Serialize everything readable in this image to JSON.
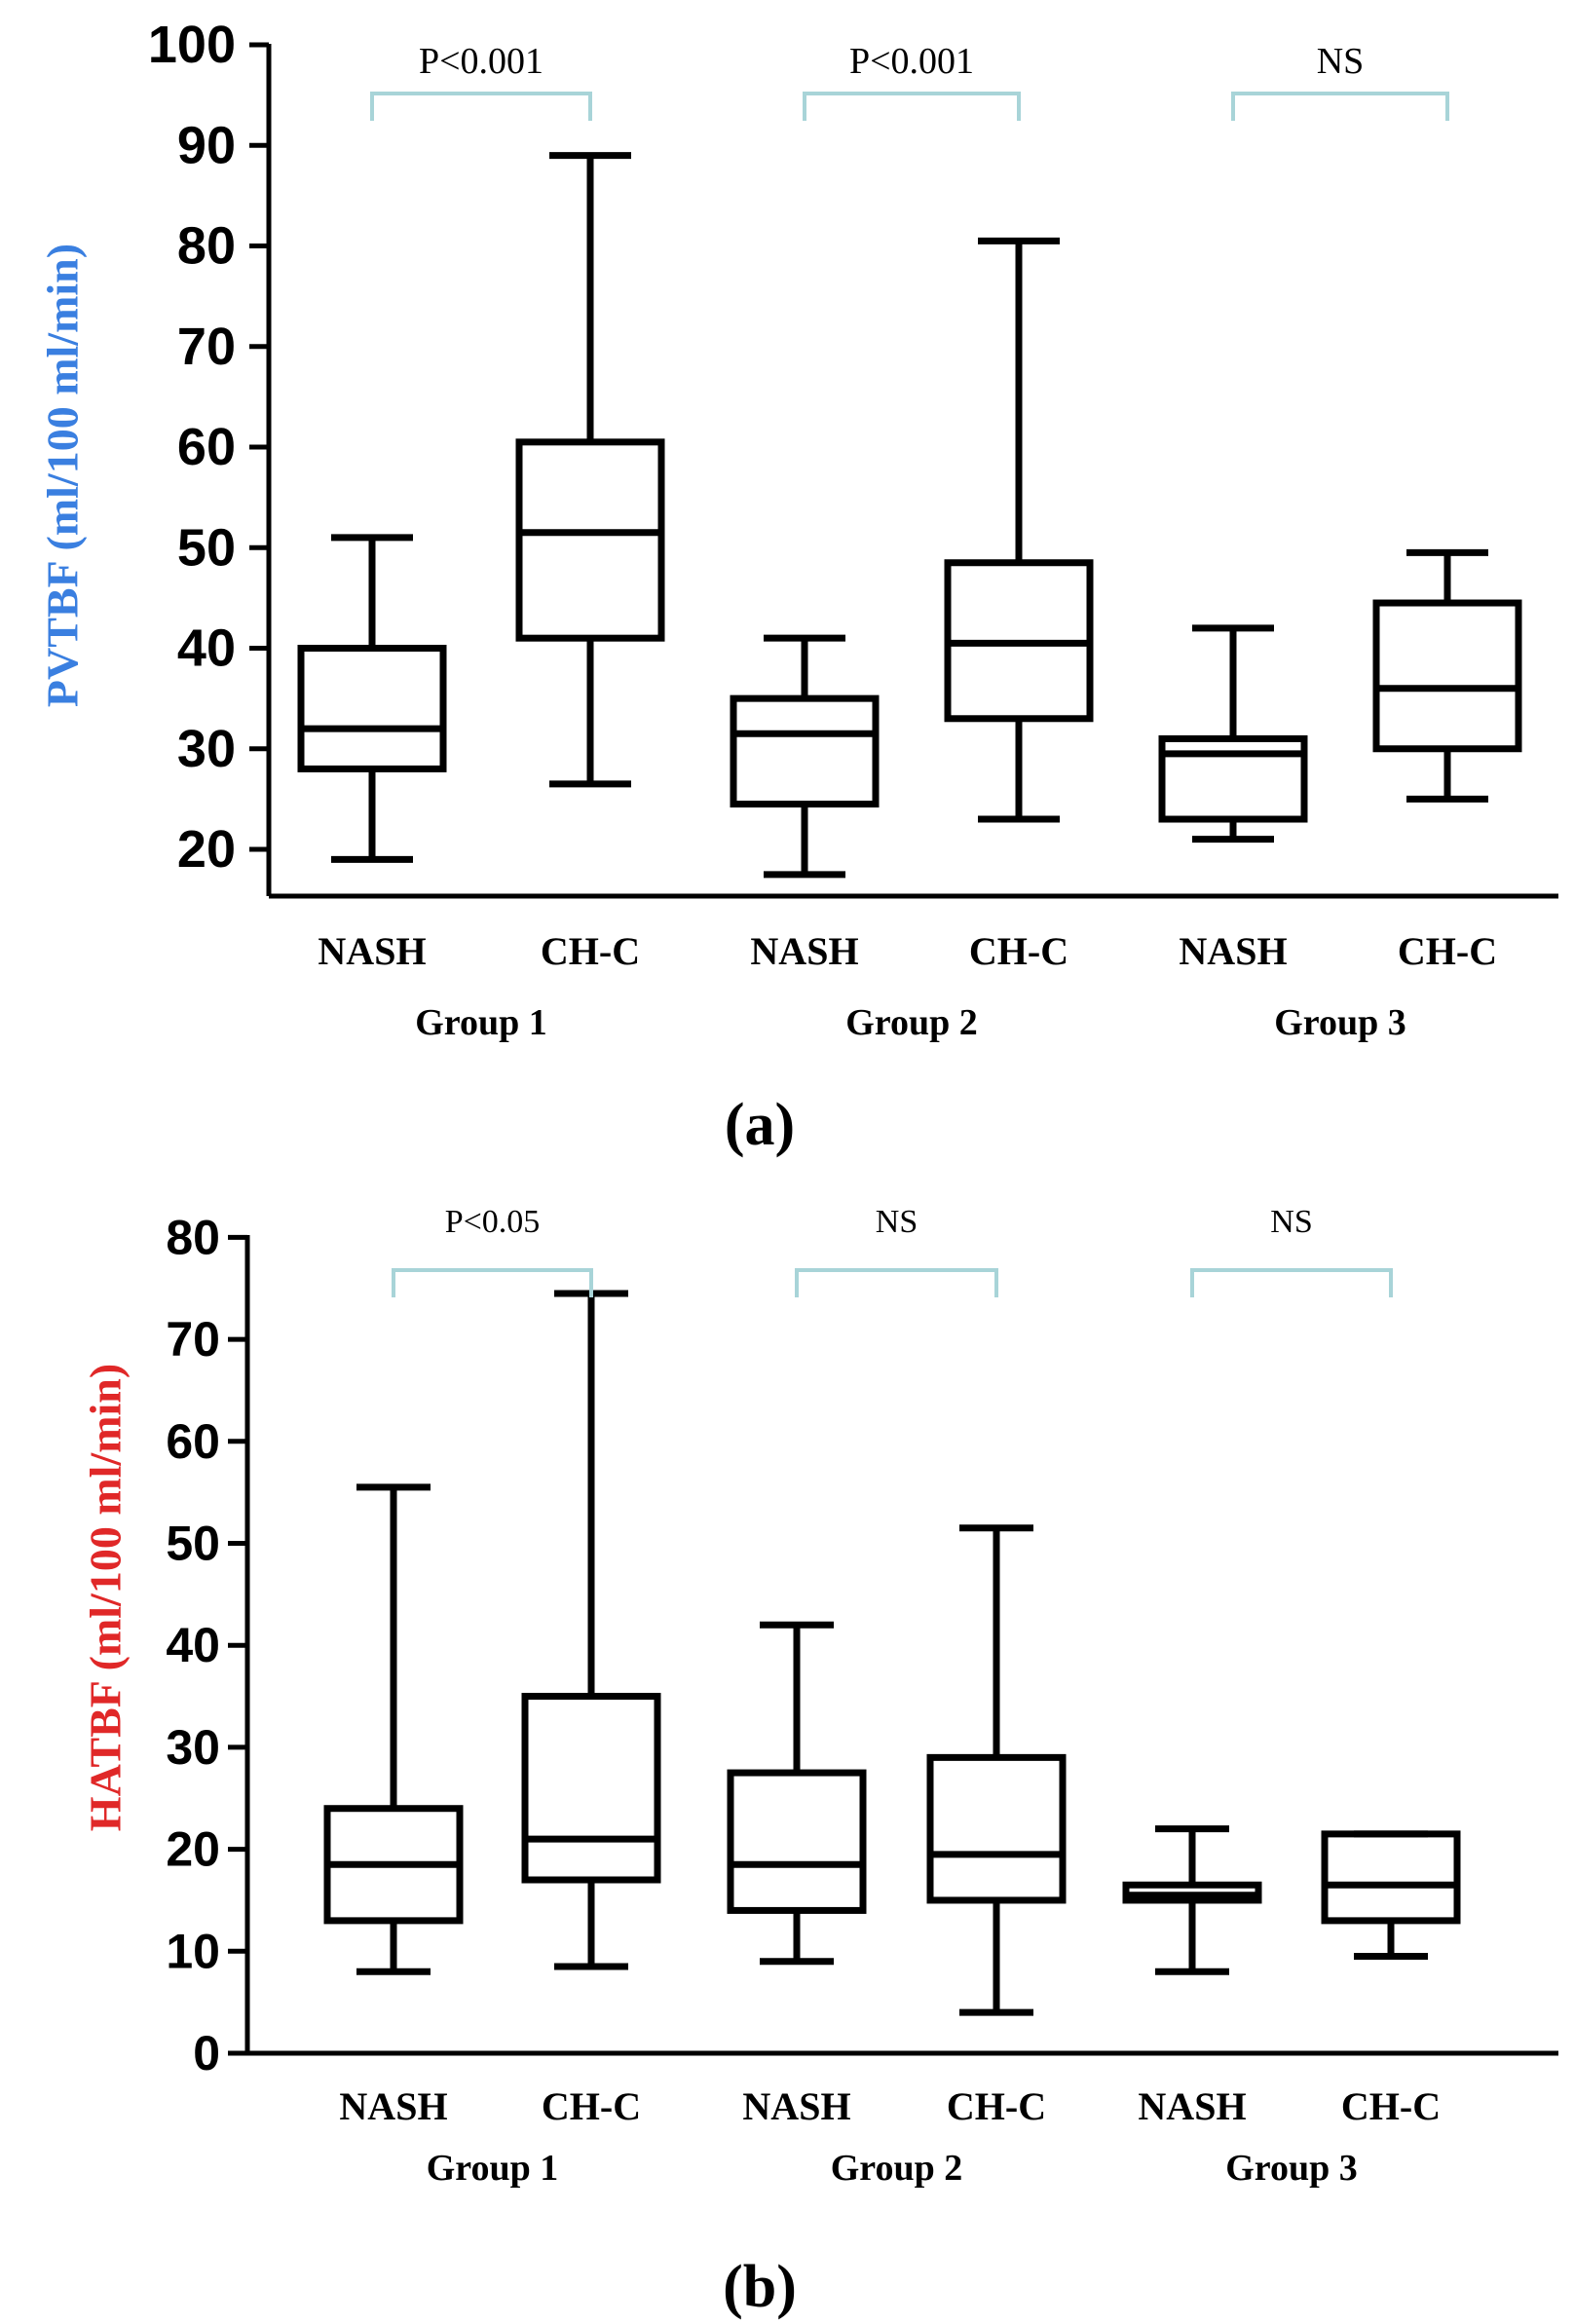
{
  "colors": {
    "axis": "#000000",
    "box": "#000000",
    "bracket": "#a8d4d8",
    "ylabel_a": "#3a7fe0",
    "ylabel_b": "#e02828"
  },
  "chart_data": [
    {
      "type": "box",
      "panel_label_open": "(",
      "panel_label_letter": "a",
      "panel_label_close": ")",
      "ylabel": "PVTBF (ml/100 ml/min)",
      "ylim": [
        15,
        100
      ],
      "yticks": [
        "20",
        "30",
        "40",
        "50",
        "60",
        "70",
        "80",
        "90",
        "100"
      ],
      "categories": [
        "NASH",
        "CH-C",
        "NASH",
        "CH-C",
        "NASH",
        "CH-C"
      ],
      "groups": [
        "Group 1",
        "Group 2",
        "Group 3"
      ],
      "significance": [
        "P<0.001",
        "P<0.001",
        "NS"
      ],
      "boxes": [
        {
          "label": "NASH",
          "group": "Group 1",
          "min": 19,
          "q1": 28,
          "median": 32,
          "q3": 40,
          "max": 51
        },
        {
          "label": "CH-C",
          "group": "Group 1",
          "min": 26.5,
          "q1": 41,
          "median": 51.5,
          "q3": 60.5,
          "max": 89
        },
        {
          "label": "NASH",
          "group": "Group 2",
          "min": 17.5,
          "q1": 24.5,
          "median": 31.5,
          "q3": 35,
          "max": 41
        },
        {
          "label": "CH-C",
          "group": "Group 2",
          "min": 23,
          "q1": 33,
          "median": 40.5,
          "q3": 48.5,
          "max": 80.5
        },
        {
          "label": "NASH",
          "group": "Group 3",
          "min": 21,
          "q1": 23,
          "median": 29.5,
          "q3": 31,
          "max": 42
        },
        {
          "label": "CH-C",
          "group": "Group 3",
          "min": 25,
          "q1": 30,
          "median": 36,
          "q3": 44.5,
          "max": 49.5
        }
      ]
    },
    {
      "type": "box",
      "panel_label_open": "(",
      "panel_label_letter": "b",
      "panel_label_close": ")",
      "ylabel": "HATBF (ml/100 ml/min)",
      "ylim": [
        0,
        80
      ],
      "yticks": [
        "0",
        "10",
        "20",
        "30",
        "40",
        "50",
        "60",
        "70",
        "80"
      ],
      "categories": [
        "NASH",
        "CH-C",
        "NASH",
        "CH-C",
        "NASH",
        "CH-C"
      ],
      "groups": [
        "Group 1",
        "Group 2",
        "Group 3"
      ],
      "significance": [
        "P<0.05",
        "NS",
        "NS"
      ],
      "boxes": [
        {
          "label": "NASH",
          "group": "Group 1",
          "min": 8,
          "q1": 13,
          "median": 18.5,
          "q3": 24,
          "max": 55.5
        },
        {
          "label": "CH-C",
          "group": "Group 1",
          "min": 8.5,
          "q1": 17,
          "median": 21,
          "q3": 35,
          "max": 74.5
        },
        {
          "label": "NASH",
          "group": "Group 2",
          "min": 9,
          "q1": 14,
          "median": 18.5,
          "q3": 27.5,
          "max": 42
        },
        {
          "label": "CH-C",
          "group": "Group 2",
          "min": 4,
          "q1": 15,
          "median": 19.5,
          "q3": 29,
          "max": 51.5
        },
        {
          "label": "NASH",
          "group": "Group 3",
          "min": 8,
          "q1": 15,
          "median": 15.5,
          "q3": 16.5,
          "max": 22
        },
        {
          "label": "CH-C",
          "group": "Group 3",
          "min": 9.5,
          "q1": 13,
          "median": 16.5,
          "q3": 21.5,
          "max": 21.5
        }
      ]
    }
  ]
}
